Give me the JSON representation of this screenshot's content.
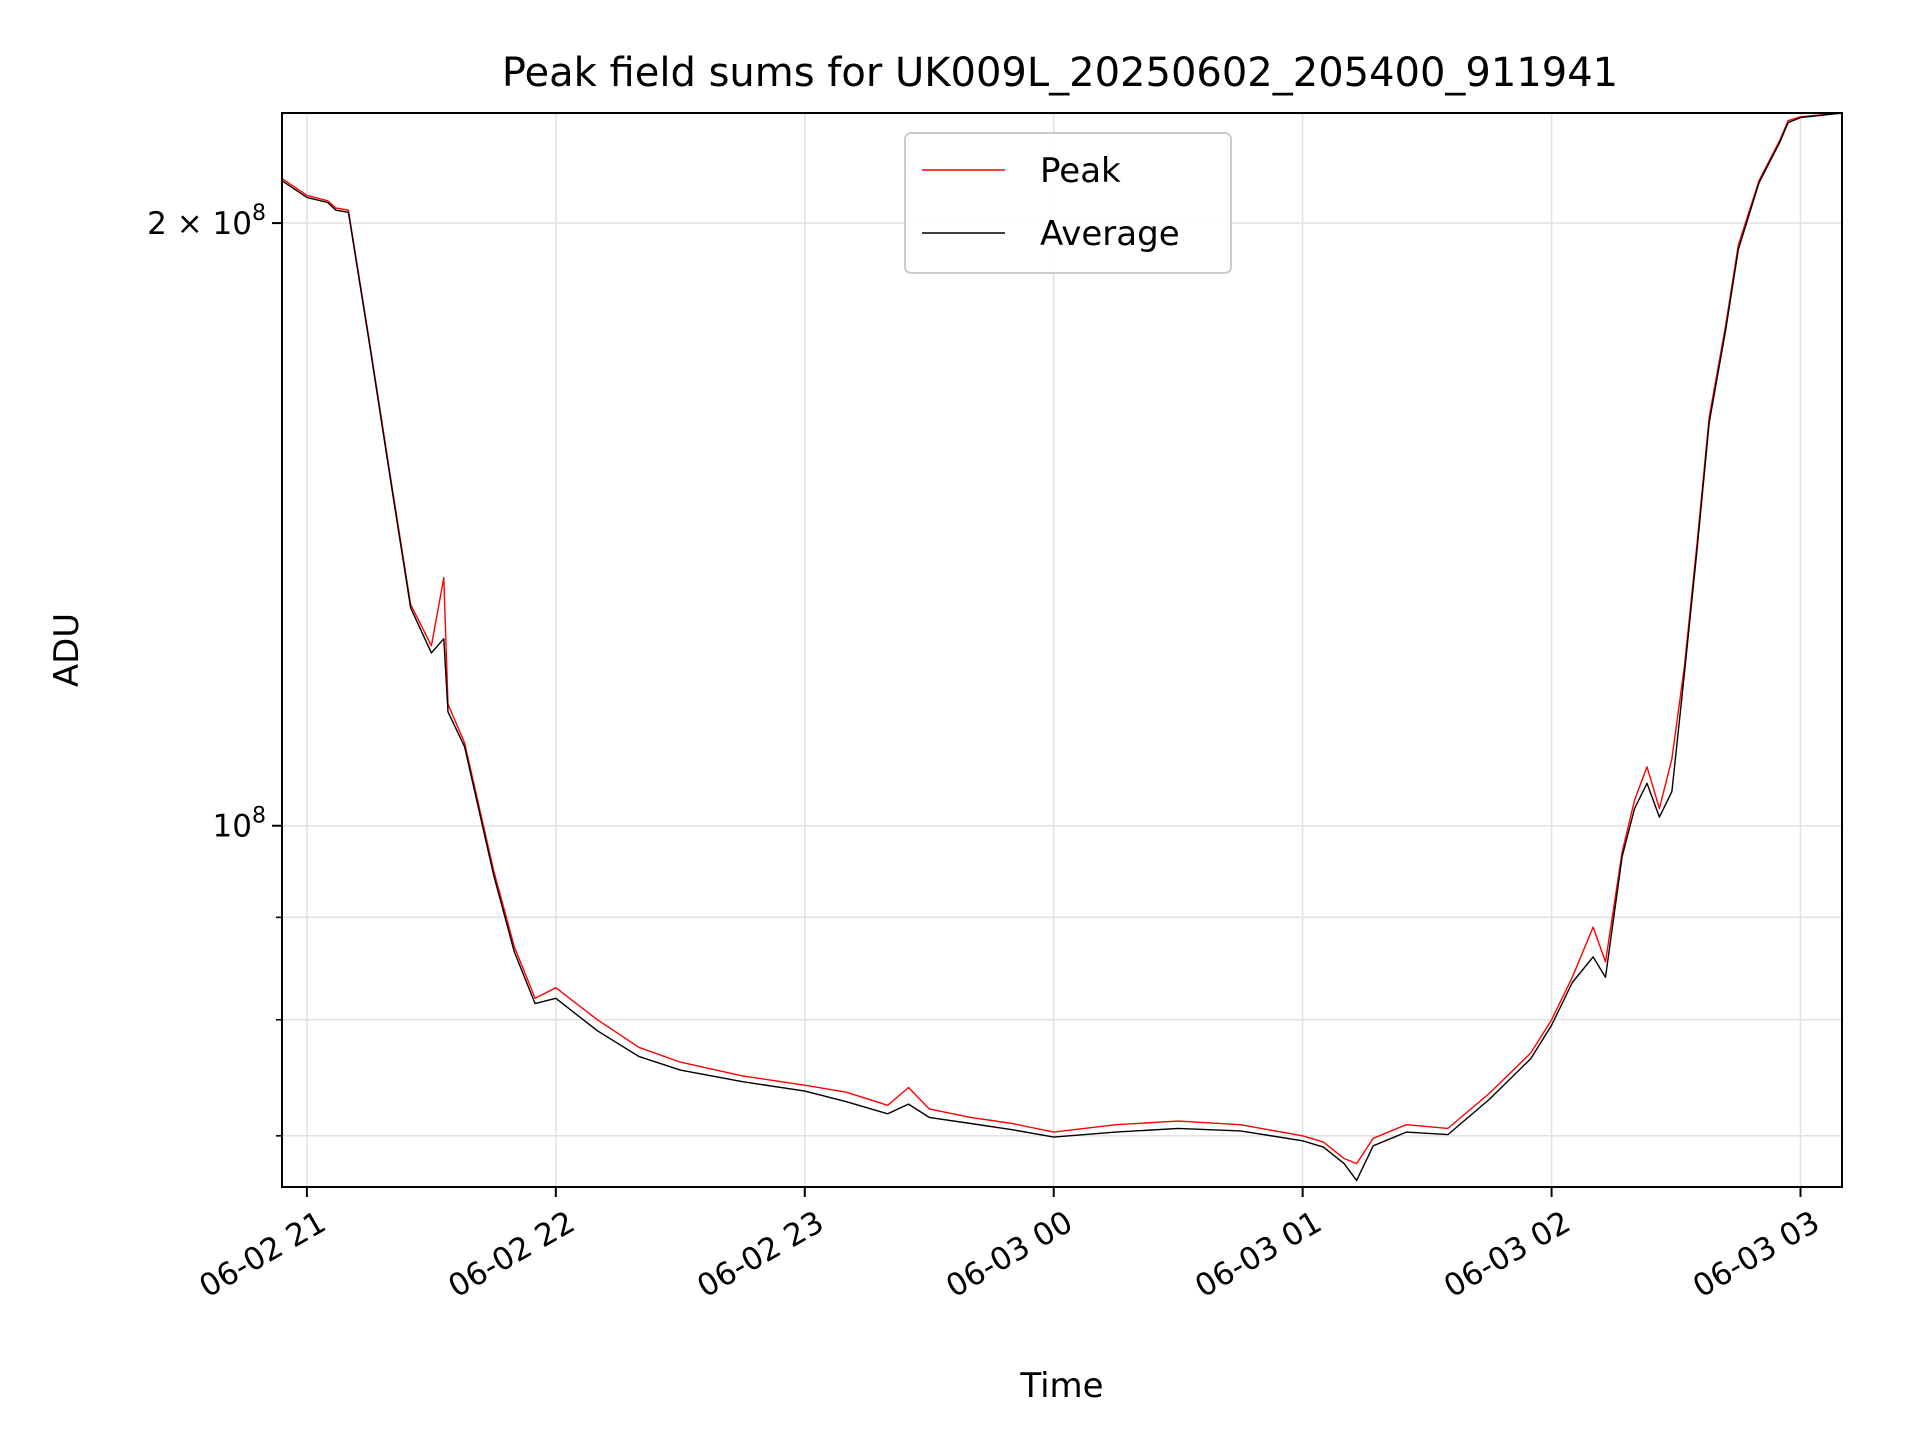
{
  "chart_data": {
    "type": "line",
    "title": "Peak field sums for UK009L_20250602_205400_911941",
    "xlabel": "Time",
    "ylabel": "ADU",
    "yscale": "log",
    "grid": true,
    "legend_placement": "upper-center",
    "xlim": [
      "2025-06-02 20:54",
      "2025-06-03 03:10"
    ],
    "ylim": [
      66000000,
      227000000
    ],
    "x_ticks": [
      {
        "value": "2025-06-02 21:00",
        "label": "06-02 21"
      },
      {
        "value": "2025-06-02 22:00",
        "label": "06-02 22"
      },
      {
        "value": "2025-06-02 23:00",
        "label": "06-02 23"
      },
      {
        "value": "2025-06-03 00:00",
        "label": "06-03 00"
      },
      {
        "value": "2025-06-03 01:00",
        "label": "06-03 01"
      },
      {
        "value": "2025-06-03 02:00",
        "label": "06-03 02"
      },
      {
        "value": "2025-06-03 03:00",
        "label": "06-03 03"
      }
    ],
    "y_ticks_major": [
      {
        "value": 100000000,
        "base": "10",
        "exp": "8"
      },
      {
        "value": 200000000,
        "mantissa": "2 × ",
        "base": "10",
        "exp": "8"
      }
    ],
    "y_ticks_minor": [
      70000000,
      80000000,
      90000000
    ],
    "series": [
      {
        "name": "Peak",
        "color": "#ff0000",
        "points": [
          [
            "2025-06-02 20:54",
            210500000
          ],
          [
            "2025-06-02 21:00",
            206500000
          ],
          [
            "2025-06-02 21:05",
            205200000
          ],
          [
            "2025-06-02 21:07",
            203500000
          ],
          [
            "2025-06-02 21:10",
            203000000
          ],
          [
            "2025-06-02 21:15",
            175000000
          ],
          [
            "2025-06-02 21:20",
            150000000
          ],
          [
            "2025-06-02 21:25",
            129000000
          ],
          [
            "2025-06-02 21:30",
            123000000
          ],
          [
            "2025-06-02 21:33",
            133000000
          ],
          [
            "2025-06-02 21:34",
            115000000
          ],
          [
            "2025-06-02 21:38",
            110000000
          ],
          [
            "2025-06-02 21:45",
            95000000
          ],
          [
            "2025-06-02 21:50",
            87000000
          ],
          [
            "2025-06-02 21:55",
            82000000
          ],
          [
            "2025-06-02 22:00",
            83000000
          ],
          [
            "2025-06-02 22:10",
            80000000
          ],
          [
            "2025-06-02 22:20",
            77500000
          ],
          [
            "2025-06-02 22:30",
            76200000
          ],
          [
            "2025-06-02 22:45",
            75000000
          ],
          [
            "2025-06-02 23:00",
            74200000
          ],
          [
            "2025-06-02 23:10",
            73600000
          ],
          [
            "2025-06-02 23:20",
            72500000
          ],
          [
            "2025-06-02 23:25",
            74000000
          ],
          [
            "2025-06-02 23:30",
            72200000
          ],
          [
            "2025-06-02 23:40",
            71500000
          ],
          [
            "2025-06-02 23:50",
            71000000
          ],
          [
            "2025-06-03 00:00",
            70300000
          ],
          [
            "2025-06-03 00:15",
            70900000
          ],
          [
            "2025-06-03 00:30",
            71200000
          ],
          [
            "2025-06-03 00:45",
            70900000
          ],
          [
            "2025-06-03 01:00",
            70000000
          ],
          [
            "2025-06-03 01:05",
            69500000
          ],
          [
            "2025-06-03 01:10",
            68200000
          ],
          [
            "2025-06-03 01:13",
            67800000
          ],
          [
            "2025-06-03 01:17",
            69800000
          ],
          [
            "2025-06-03 01:25",
            70900000
          ],
          [
            "2025-06-03 01:35",
            70600000
          ],
          [
            "2025-06-03 01:45",
            73500000
          ],
          [
            "2025-06-03 01:55",
            77000000
          ],
          [
            "2025-06-03 02:00",
            80000000
          ],
          [
            "2025-06-03 02:05",
            84000000
          ],
          [
            "2025-06-03 02:10",
            89000000
          ],
          [
            "2025-06-03 02:13",
            85500000
          ],
          [
            "2025-06-03 02:17",
            97000000
          ],
          [
            "2025-06-03 02:20",
            103000000
          ],
          [
            "2025-06-03 02:23",
            107000000
          ],
          [
            "2025-06-03 02:26",
            102000000
          ],
          [
            "2025-06-03 02:29",
            108000000
          ],
          [
            "2025-06-03 02:32",
            120000000
          ],
          [
            "2025-06-03 02:35",
            138000000
          ],
          [
            "2025-06-03 02:38",
            160000000
          ],
          [
            "2025-06-03 02:42",
            178000000
          ],
          [
            "2025-06-03 02:45",
            195000000
          ],
          [
            "2025-06-03 02:50",
            210000000
          ],
          [
            "2025-06-03 02:55",
            220000000
          ],
          [
            "2025-06-03 02:57",
            225000000
          ],
          [
            "2025-06-03 03:00",
            226000000
          ],
          [
            "2025-06-03 03:10",
            227000000
          ]
        ]
      },
      {
        "name": "Average",
        "color": "#000000",
        "points": [
          [
            "2025-06-02 20:54",
            210000000
          ],
          [
            "2025-06-02 21:00",
            206000000
          ],
          [
            "2025-06-02 21:05",
            204800000
          ],
          [
            "2025-06-02 21:07",
            203000000
          ],
          [
            "2025-06-02 21:10",
            202500000
          ],
          [
            "2025-06-02 21:15",
            174500000
          ],
          [
            "2025-06-02 21:20",
            149500000
          ],
          [
            "2025-06-02 21:25",
            128500000
          ],
          [
            "2025-06-02 21:30",
            122000000
          ],
          [
            "2025-06-02 21:33",
            124000000
          ],
          [
            "2025-06-02 21:34",
            114000000
          ],
          [
            "2025-06-02 21:38",
            109500000
          ],
          [
            "2025-06-02 21:45",
            94500000
          ],
          [
            "2025-06-02 21:50",
            86500000
          ],
          [
            "2025-06-02 21:55",
            81500000
          ],
          [
            "2025-06-02 22:00",
            82000000
          ],
          [
            "2025-06-02 22:10",
            79000000
          ],
          [
            "2025-06-02 22:20",
            76700000
          ],
          [
            "2025-06-02 22:30",
            75500000
          ],
          [
            "2025-06-02 22:45",
            74500000
          ],
          [
            "2025-06-02 23:00",
            73700000
          ],
          [
            "2025-06-02 23:10",
            72800000
          ],
          [
            "2025-06-02 23:20",
            71800000
          ],
          [
            "2025-06-02 23:25",
            72600000
          ],
          [
            "2025-06-02 23:30",
            71500000
          ],
          [
            "2025-06-02 23:40",
            71000000
          ],
          [
            "2025-06-02 23:50",
            70500000
          ],
          [
            "2025-06-03 00:00",
            69900000
          ],
          [
            "2025-06-03 00:15",
            70300000
          ],
          [
            "2025-06-03 00:30",
            70600000
          ],
          [
            "2025-06-03 00:45",
            70400000
          ],
          [
            "2025-06-03 01:00",
            69600000
          ],
          [
            "2025-06-03 01:05",
            69100000
          ],
          [
            "2025-06-03 01:10",
            67800000
          ],
          [
            "2025-06-03 01:13",
            66500000
          ],
          [
            "2025-06-03 01:17",
            69200000
          ],
          [
            "2025-06-03 01:25",
            70300000
          ],
          [
            "2025-06-03 01:35",
            70100000
          ],
          [
            "2025-06-03 01:45",
            73000000
          ],
          [
            "2025-06-03 01:55",
            76500000
          ],
          [
            "2025-06-03 02:00",
            79500000
          ],
          [
            "2025-06-03 02:05",
            83500000
          ],
          [
            "2025-06-03 02:10",
            86000000
          ],
          [
            "2025-06-03 02:13",
            84000000
          ],
          [
            "2025-06-03 02:17",
            96500000
          ],
          [
            "2025-06-03 02:20",
            102000000
          ],
          [
            "2025-06-03 02:23",
            105000000
          ],
          [
            "2025-06-03 02:26",
            101000000
          ],
          [
            "2025-06-03 02:29",
            104000000
          ],
          [
            "2025-06-03 02:32",
            119000000
          ],
          [
            "2025-06-03 02:35",
            137000000
          ],
          [
            "2025-06-03 02:38",
            159000000
          ],
          [
            "2025-06-03 02:42",
            177000000
          ],
          [
            "2025-06-03 02:45",
            194000000
          ],
          [
            "2025-06-03 02:50",
            209500000
          ],
          [
            "2025-06-03 02:55",
            219500000
          ],
          [
            "2025-06-03 02:57",
            224500000
          ],
          [
            "2025-06-03 03:00",
            225800000
          ],
          [
            "2025-06-03 03:10",
            227000000
          ]
        ]
      }
    ]
  }
}
